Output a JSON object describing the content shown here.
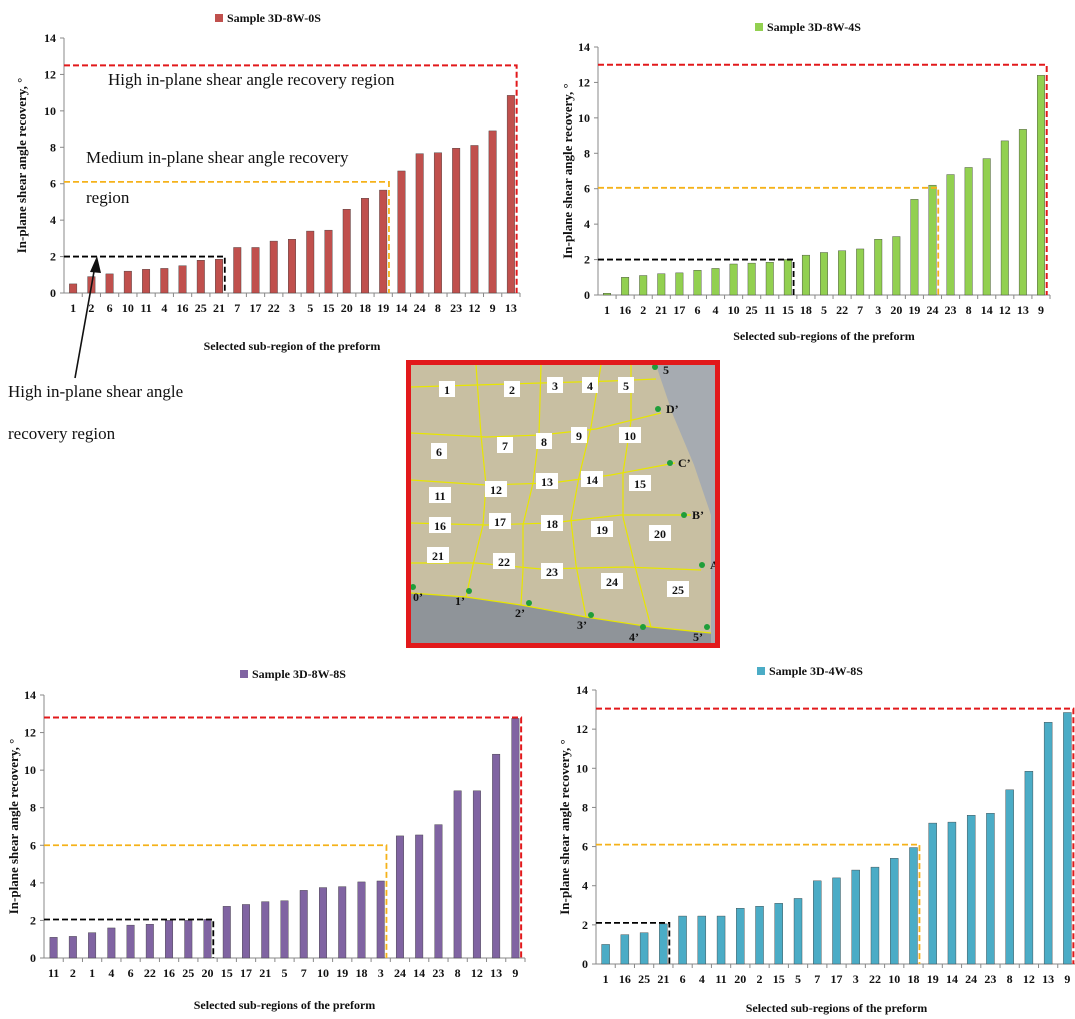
{
  "chart_data": [
    {
      "type": "bar",
      "title": "Sample 3D-8W-0S",
      "xlabel": "Selected sub-region of the preform",
      "ylabel": "In-plane shear angle recovery, °",
      "ylim": [
        0,
        14
      ],
      "yticks": [
        0,
        2,
        4,
        6,
        8,
        10,
        12,
        14
      ],
      "grid": false,
      "legend": "top",
      "color": "#c0504d",
      "categories": [
        "1",
        "2",
        "6",
        "10",
        "11",
        "4",
        "16",
        "25",
        "21",
        "7",
        "17",
        "22",
        "3",
        "5",
        "15",
        "20",
        "18",
        "19",
        "14",
        "24",
        "8",
        "23",
        "12",
        "9",
        "13"
      ],
      "values": [
        0.5,
        0.9,
        1.05,
        1.2,
        1.3,
        1.35,
        1.5,
        1.8,
        1.85,
        2.5,
        2.5,
        2.85,
        2.95,
        3.4,
        3.45,
        4.6,
        5.2,
        5.65,
        6.7,
        7.65,
        7.7,
        7.95,
        8.1,
        8.9,
        10.85
      ],
      "thresholds": [
        {
          "value": 2,
          "end_index": 8,
          "color": "#000000"
        },
        {
          "value": 6.1,
          "end_index": 17,
          "color": "#f5b21a"
        },
        {
          "value": 12.5,
          "end_index": 24,
          "color": "#e2191b"
        }
      ]
    },
    {
      "type": "bar",
      "title": "Sample 3D-8W-4S",
      "xlabel": "Selected sub-regions of the preform",
      "ylabel": "In-plane shear angle recovery, °",
      "ylim": [
        0,
        14
      ],
      "yticks": [
        0,
        2,
        4,
        6,
        8,
        10,
        12,
        14
      ],
      "grid": false,
      "legend": "top",
      "color": "#92d050",
      "categories": [
        "1",
        "16",
        "2",
        "21",
        "17",
        "6",
        "4",
        "10",
        "25",
        "11",
        "15",
        "18",
        "5",
        "22",
        "7",
        "3",
        "20",
        "19",
        "24",
        "23",
        "8",
        "14",
        "12",
        "13",
        "9"
      ],
      "values": [
        0.1,
        1.0,
        1.1,
        1.2,
        1.25,
        1.4,
        1.5,
        1.75,
        1.8,
        1.85,
        2.0,
        2.25,
        2.4,
        2.5,
        2.6,
        3.15,
        3.3,
        5.4,
        6.2,
        6.8,
        7.2,
        7.7,
        8.7,
        9.35,
        12.4
      ],
      "thresholds": [
        {
          "value": 2,
          "end_index": 10,
          "color": "#000000"
        },
        {
          "value": 6.05,
          "end_index": 18,
          "color": "#f5b21a"
        },
        {
          "value": 13,
          "end_index": 24,
          "color": "#e2191b"
        }
      ]
    },
    {
      "type": "bar",
      "title": "Sample 3D-8W-8S",
      "xlabel": "Selected sub-regions of the preform",
      "ylabel": "In-plane shear angle recovery, °",
      "ylim": [
        0,
        14
      ],
      "yticks": [
        0,
        2,
        4,
        6,
        8,
        10,
        12,
        14
      ],
      "grid": false,
      "legend": "top",
      "color": "#8064a2",
      "categories": [
        "11",
        "2",
        "1",
        "4",
        "6",
        "22",
        "16",
        "25",
        "20",
        "15",
        "17",
        "21",
        "5",
        "7",
        "10",
        "19",
        "18",
        "3",
        "24",
        "14",
        "23",
        "8",
        "12",
        "13",
        "9"
      ],
      "values": [
        1.1,
        1.15,
        1.35,
        1.6,
        1.75,
        1.8,
        2.0,
        2.0,
        2.05,
        2.75,
        2.85,
        3.0,
        3.05,
        3.6,
        3.75,
        3.8,
        4.05,
        4.1,
        6.5,
        6.55,
        7.1,
        8.9,
        8.9,
        10.85,
        12.75
      ],
      "thresholds": [
        {
          "value": 2.05,
          "end_index": 8,
          "color": "#000000"
        },
        {
          "value": 6.0,
          "end_index": 17,
          "color": "#f5b21a"
        },
        {
          "value": 12.8,
          "end_index": 24,
          "color": "#e2191b"
        }
      ]
    },
    {
      "type": "bar",
      "title": "Sample 3D-4W-8S",
      "xlabel": "Selected sub-regions of the preform",
      "ylabel": "In-plane shear angle recovery, °",
      "ylim": [
        0,
        14
      ],
      "yticks": [
        0,
        2,
        4,
        6,
        8,
        10,
        12,
        14
      ],
      "grid": false,
      "legend": "top",
      "color": "#4bacc6",
      "categories": [
        "1",
        "16",
        "25",
        "21",
        "6",
        "4",
        "11",
        "20",
        "2",
        "15",
        "5",
        "7",
        "17",
        "3",
        "22",
        "10",
        "18",
        "19",
        "14",
        "24",
        "23",
        "8",
        "12",
        "13",
        "9"
      ],
      "values": [
        1.0,
        1.5,
        1.6,
        2.05,
        2.45,
        2.45,
        2.45,
        2.85,
        2.95,
        3.1,
        3.35,
        4.25,
        4.4,
        4.8,
        4.95,
        5.4,
        5.95,
        7.2,
        7.25,
        7.6,
        7.7,
        8.9,
        9.85,
        12.35,
        12.85
      ],
      "thresholds": [
        {
          "value": 2.1,
          "end_index": 3,
          "color": "#000000"
        },
        {
          "value": 6.1,
          "end_index": 16,
          "color": "#f5b21a"
        },
        {
          "value": 13.05,
          "end_index": 24,
          "color": "#e2191b"
        }
      ]
    }
  ],
  "annotations": {
    "high_region_top": "High in-plane shear angle recovery region",
    "medium_region_line1": "Medium   in-plane   shear   angle   recovery",
    "medium_region_line2": "region",
    "high_region_left_line1": "High  in-plane  shear  angle",
    "high_region_left_line2": "recovery region"
  },
  "photo": {
    "cells": [
      "1",
      "2",
      "3",
      "4",
      "5",
      "6",
      "7",
      "8",
      "9",
      "10",
      "11",
      "12",
      "13",
      "14",
      "15",
      "16",
      "17",
      "18",
      "19",
      "20",
      "21",
      "22",
      "23",
      "24",
      "25"
    ],
    "edge_labels_right": [
      "D’",
      "C’",
      "B’",
      "A’"
    ],
    "edge_labels_bottom": [
      "0’",
      "1’",
      "2’",
      "3’",
      "4’",
      "5’"
    ],
    "top_label": "5",
    "colors": {
      "fabric": "#c8bfa2",
      "grid_line": "#e8e600",
      "frame": "#e2191b",
      "point": "#1f9e3a"
    }
  }
}
